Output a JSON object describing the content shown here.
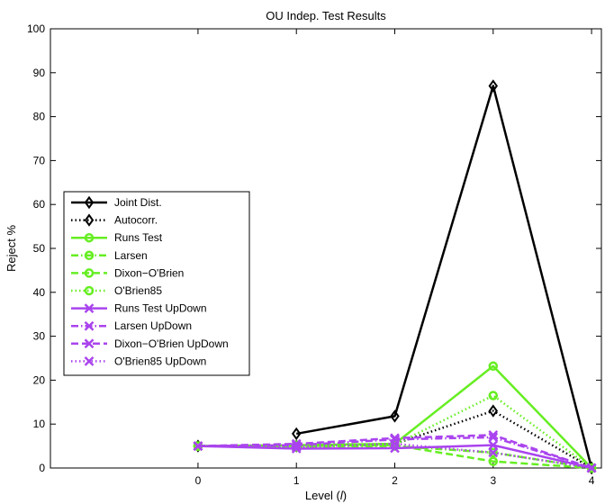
{
  "chart_data": {
    "type": "line",
    "title": "OU Indep. Test Results",
    "xlabel": "Level (l)",
    "xlabel_parts": [
      "Level (",
      "l",
      ")"
    ],
    "ylabel": "Reject %",
    "xlim": [
      -1.5,
      4.1
    ],
    "ylim": [
      0,
      100
    ],
    "xticks": [
      0,
      1,
      2,
      3,
      4
    ],
    "yticks": [
      0,
      10,
      20,
      30,
      40,
      50,
      60,
      70,
      80,
      90,
      100
    ],
    "grid": false,
    "legend_position": "left",
    "series": [
      {
        "name": "Joint Dist.",
        "color": "#000000",
        "dash": "solid",
        "marker": "diamond",
        "x": [
          1,
          2,
          3,
          4
        ],
        "y": [
          7.8,
          11.8,
          87.0,
          0
        ]
      },
      {
        "name": "Autocorr.",
        "color": "#000000",
        "dash": "dotted",
        "marker": "diamond",
        "x": [
          0,
          1,
          2,
          3,
          4
        ],
        "y": [
          5,
          5.0,
          5.5,
          13.0,
          0
        ]
      },
      {
        "name": "Runs Test",
        "color": "#66ee22",
        "dash": "solid",
        "marker": "circle",
        "x": [
          0,
          1,
          2,
          3,
          4
        ],
        "y": [
          5,
          5.2,
          5.5,
          23.2,
          0
        ]
      },
      {
        "name": "Larsen",
        "color": "#66ee22",
        "dash": "dashdot",
        "marker": "circle",
        "x": [
          0,
          1,
          2,
          3,
          4
        ],
        "y": [
          5,
          4.8,
          5.0,
          3.5,
          0
        ]
      },
      {
        "name": "Dixon−O'Brien",
        "color": "#66ee22",
        "dash": "dashed",
        "marker": "circle",
        "x": [
          0,
          1,
          2,
          3,
          4
        ],
        "y": [
          5,
          5.0,
          5.2,
          1.5,
          0
        ]
      },
      {
        "name": "O'Brien85",
        "color": "#66ee22",
        "dash": "dotted",
        "marker": "circle",
        "x": [
          0,
          1,
          2,
          3,
          4
        ],
        "y": [
          5,
          5.0,
          5.3,
          16.5,
          0
        ]
      },
      {
        "name": "Runs Test UpDown",
        "color": "#aa44ee",
        "dash": "solid",
        "marker": "x",
        "x": [
          0,
          1,
          2,
          3,
          4
        ],
        "y": [
          5,
          4.4,
          4.5,
          5.2,
          0
        ]
      },
      {
        "name": "Larsen UpDown",
        "color": "#aa44ee",
        "dash": "dashdot",
        "marker": "x",
        "x": [
          0,
          1,
          2,
          3,
          4
        ],
        "y": [
          5,
          5.2,
          6.5,
          7.0,
          0
        ]
      },
      {
        "name": "Dixon−O'Brien UpDown",
        "color": "#aa44ee",
        "dash": "dashed",
        "marker": "x",
        "x": [
          0,
          1,
          2,
          3,
          4
        ],
        "y": [
          5,
          5.5,
          6.8,
          7.5,
          0
        ]
      },
      {
        "name": "O'Brien85 UpDown",
        "color": "#aa44ee",
        "dash": "dotted",
        "marker": "x",
        "x": [
          0,
          1,
          2,
          3,
          4
        ],
        "y": [
          5,
          4.8,
          5.5,
          3.5,
          0
        ]
      }
    ]
  }
}
